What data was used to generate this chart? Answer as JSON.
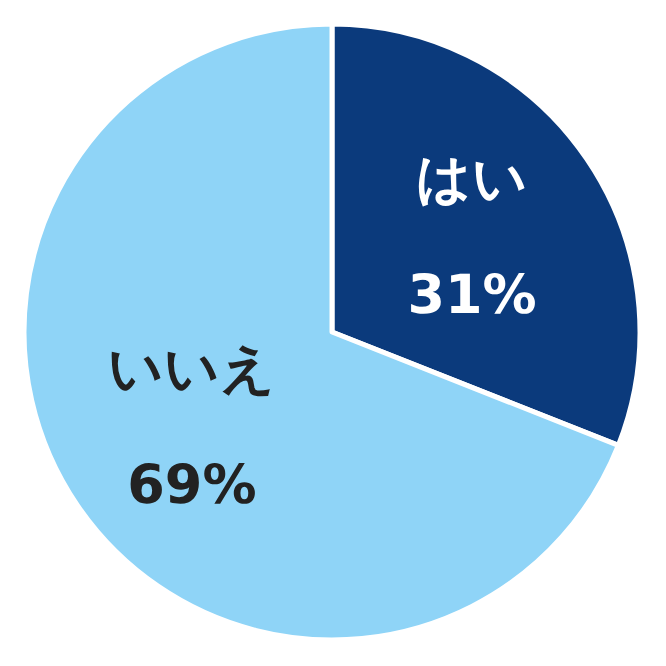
{
  "chart_data": {
    "type": "pie",
    "categories": [
      "はい",
      "いいえ"
    ],
    "values": [
      31,
      69
    ],
    "colors": [
      "#0b3a7c",
      "#8fd4f7"
    ],
    "value_labels": [
      "31%",
      "69%"
    ]
  }
}
